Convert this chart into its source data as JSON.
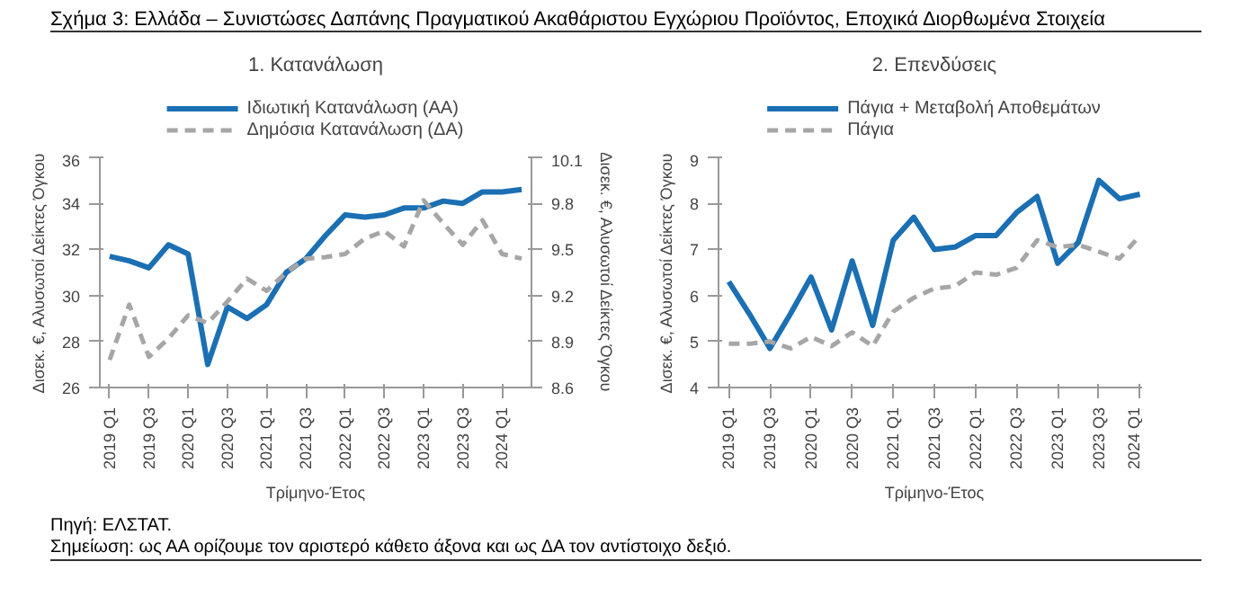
{
  "chart_data": [
    {
      "type": "line",
      "title": "Σχήμα 3: Ελλάδα – Συνιστώσες Δαπάνης Πραγματικού Ακαθάριστου Εγχώριου Προϊόντος, Εποχικά Διορθωμένα Στοιχεία",
      "subtitle": "1. Κατανάλωση",
      "categories": [
        "2019 Q1",
        null,
        "2019 Q3",
        null,
        "2020 Q1",
        null,
        "2020 Q3",
        null,
        "2021 Q1",
        null,
        "2021 Q3",
        null,
        "2022 Q1",
        null,
        "2022 Q3",
        null,
        "2023 Q1",
        null,
        "2023 Q3",
        null,
        "2024 Q1",
        null
      ],
      "xlabel": "Τρίμηνο-Έτος",
      "ylabel": "Δισεκ. €, Αλυσωτοί Δείκτες Όγκου",
      "y2label": "Δισεκ. €, Αλυσωτοί Δείκτες Όγκου",
      "ylim": [
        26,
        36
      ],
      "yticks": [
        26,
        28,
        30,
        32,
        34,
        36
      ],
      "y2lim": [
        8.6,
        10.1
      ],
      "y2ticks": [
        {
          "value": 8.6,
          "label": "8.6"
        },
        {
          "value": 8.9,
          "label": "8.9"
        },
        {
          "value": 9.2,
          "label": "9.2"
        },
        {
          "value": 9.5,
          "label": "9.5"
        },
        {
          "value": 9.8,
          "label": "9.8"
        },
        {
          "value": 10.1,
          "label": "10.1"
        }
      ],
      "series": [
        {
          "name": "Ιδιωτική Κατανάλωση (ΑΑ)",
          "color": "#1b6fb3",
          "line_style": "solid",
          "values": [
            31.7,
            31.5,
            31.2,
            32.2,
            31.8,
            27.0,
            29.5,
            29.0,
            29.6,
            31.0,
            31.6,
            32.6,
            33.5,
            33.4,
            33.5,
            33.8,
            33.8,
            34.1,
            34.0,
            34.5,
            34.5,
            34.6
          ]
        },
        {
          "name": "Δημόσια Κατανάλωση (ΔΑ)",
          "color": "#a6a6a6",
          "line_style": "dashed",
          "axis": "y2",
          "values": [
            8.78,
            9.14,
            8.8,
            8.92,
            9.07,
            9.02,
            9.16,
            9.31,
            9.23,
            9.35,
            9.44,
            9.45,
            9.47,
            9.57,
            9.62,
            9.52,
            9.82,
            9.67,
            9.53,
            9.69,
            9.47,
            9.44
          ]
        }
      ],
      "legend": "top",
      "grid": false,
      "annotations": [
        "Πηγή: ΕΛΣΤΑΤ.",
        "Σημείωση: ως ΑΑ ορίζουμε τον αριστερό κάθετο άξονα και ως ΔΑ τον αντίστοιχο δεξιό."
      ]
    },
    {
      "type": "line",
      "subtitle": "2. Επενδύσεις",
      "categories": [
        "2019 Q1",
        null,
        "2019 Q3",
        null,
        "2020 Q1",
        null,
        "2020 Q3",
        null,
        "2021 Q1",
        null,
        "2021 Q3",
        null,
        "2022 Q1",
        null,
        "2022 Q3",
        null,
        "2023 Q1",
        null,
        "2023 Q3",
        null,
        "2024 Q1"
      ],
      "xlabel": "Τρίμηνο-Έτος",
      "ylabel": "Δισεκ. €, Αλυσωτοί Δείκτες Όγκου",
      "ylim": [
        4,
        9
      ],
      "yticks": [
        4,
        5,
        6,
        7,
        8,
        9
      ],
      "series": [
        {
          "name": "Πάγια + Μεταβολή Αποθεμάτων",
          "color": "#1b6fb3",
          "line_style": "solid",
          "values": [
            6.3,
            5.6,
            4.85,
            5.6,
            6.4,
            5.25,
            6.75,
            5.35,
            7.2,
            7.7,
            7.0,
            7.05,
            7.3,
            7.3,
            7.8,
            8.15,
            6.7,
            7.15,
            8.5,
            8.1,
            8.2
          ]
        },
        {
          "name": "Πάγια",
          "color": "#a6a6a6",
          "line_style": "dashed",
          "values": [
            4.95,
            4.95,
            5.0,
            4.85,
            5.1,
            4.9,
            5.2,
            4.9,
            5.65,
            5.95,
            6.15,
            6.2,
            6.5,
            6.45,
            6.6,
            7.2,
            7.05,
            7.1,
            6.95,
            6.8,
            7.3
          ]
        }
      ],
      "legend": "top",
      "grid": false
    }
  ]
}
